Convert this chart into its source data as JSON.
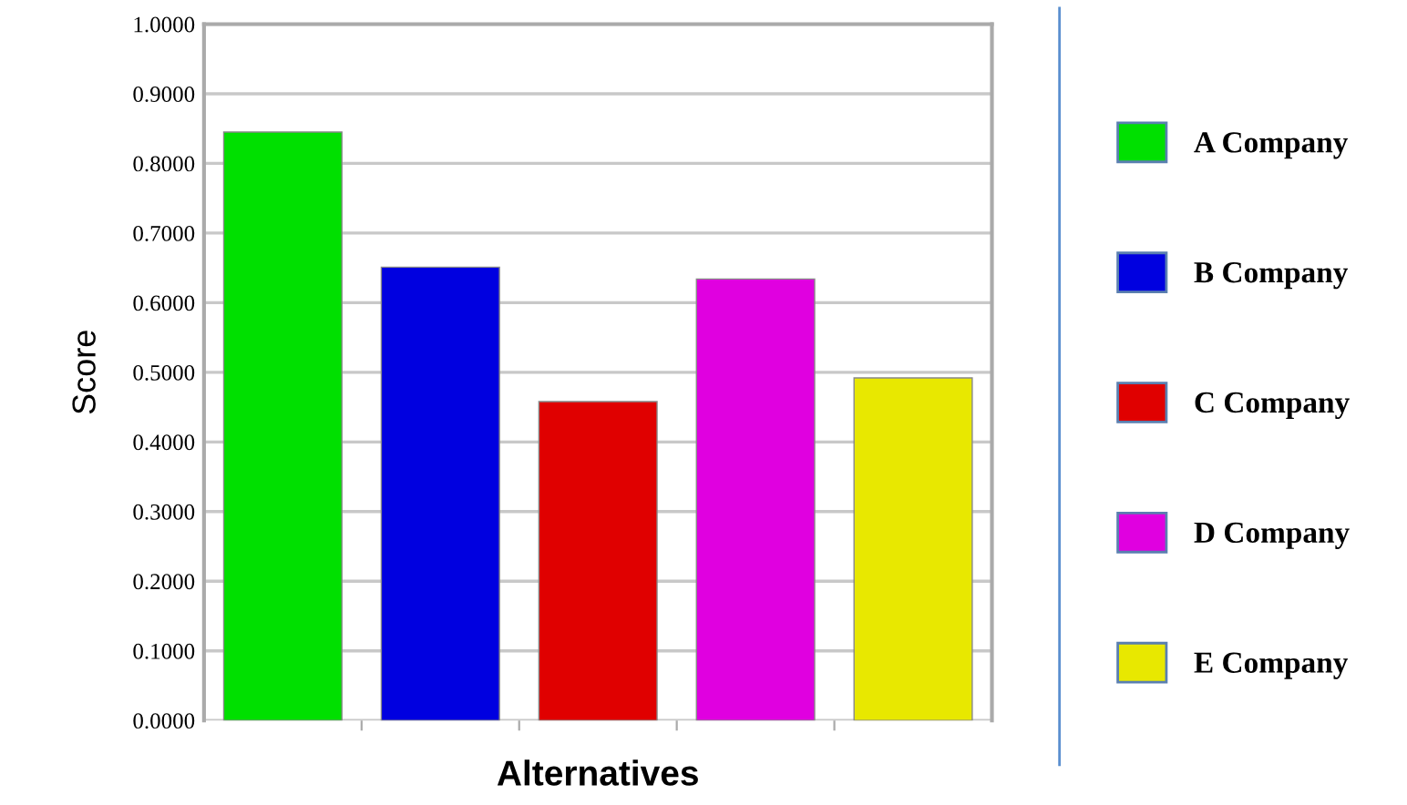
{
  "chart_data": {
    "type": "bar",
    "xlabel": "Alternatives",
    "ylabel": "Score",
    "categories": [
      null,
      null,
      null,
      null,
      null
    ],
    "series": [
      {
        "name": "A Company",
        "color": "#00e000",
        "values": [
          0.845,
          null,
          null,
          null,
          null
        ]
      },
      {
        "name": "B Company",
        "color": "#0000e0",
        "values": [
          null,
          0.651,
          null,
          null,
          null
        ]
      },
      {
        "name": "C Company",
        "color": "#e00000",
        "values": [
          null,
          null,
          0.458,
          null,
          null
        ]
      },
      {
        "name": "D Company",
        "color": "#e000e0",
        "values": [
          null,
          null,
          null,
          0.634,
          null
        ]
      },
      {
        "name": "E Company",
        "color": "#e8e800",
        "values": [
          null,
          null,
          null,
          null,
          0.492
        ]
      }
    ],
    "ylim": [
      0,
      1
    ],
    "yticks": [
      {
        "value": 0,
        "label": "0.0000"
      },
      {
        "value": 0.1,
        "label": "0.1000"
      },
      {
        "value": 0.2,
        "label": "0.2000"
      },
      {
        "value": 0.3,
        "label": "0.3000"
      },
      {
        "value": 0.4,
        "label": "0.4000"
      },
      {
        "value": 0.5,
        "label": "0.5000"
      },
      {
        "value": 0.6,
        "label": "0.6000"
      },
      {
        "value": 0.7,
        "label": "0.7000"
      },
      {
        "value": 0.8,
        "label": "0.8000"
      },
      {
        "value": 0.9,
        "label": "0.9000"
      },
      {
        "value": 1,
        "label": "1.0000"
      }
    ],
    "grid": "y",
    "legend": "right"
  }
}
